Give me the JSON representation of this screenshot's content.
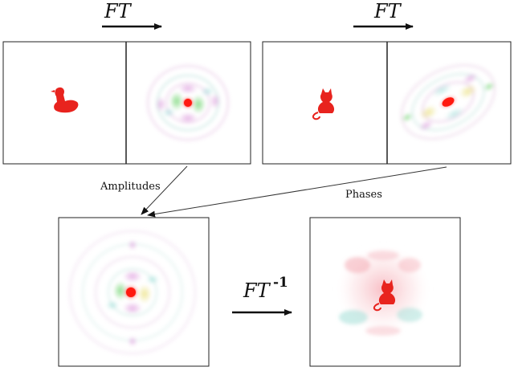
{
  "operators": {
    "forward_1": "FT",
    "forward_2": "FT",
    "inverse": "FT",
    "inverse_exponent": "-1"
  },
  "captions": {
    "amplitudes": "Amplitudes",
    "phases": "Phases"
  },
  "colors": {
    "object_red": "#e8231e",
    "spectrum_green": "#6fd46a",
    "spectrum_magenta": "#d98ad6",
    "spectrum_cyan": "#8fd8d0",
    "panel_border": "#222222",
    "arrow": "#111111"
  },
  "figures": {
    "source_1_shape": "duck",
    "source_2_shape": "cat",
    "reconstruction_shape": "cat"
  }
}
